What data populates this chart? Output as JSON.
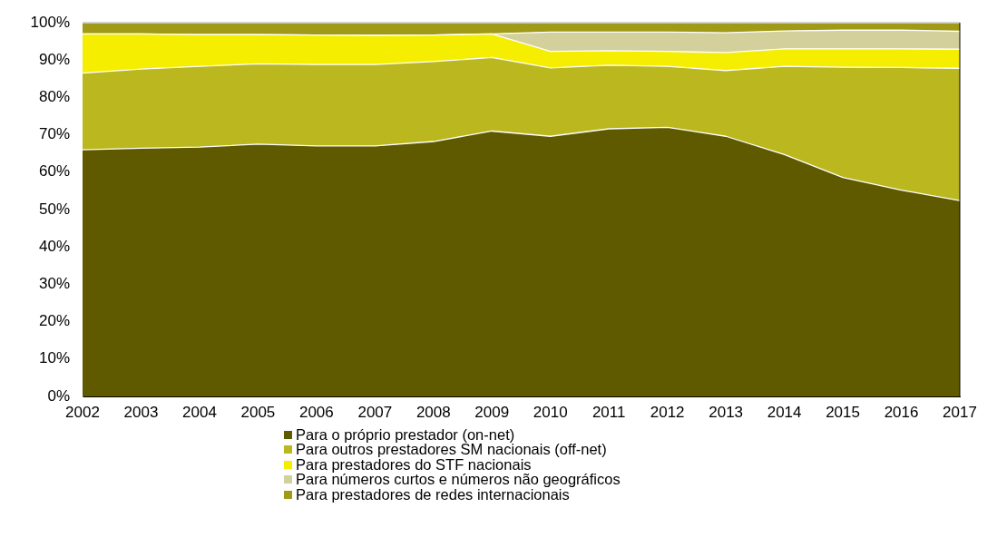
{
  "chart_data": {
    "type": "area",
    "stacked": true,
    "categories": [
      "2002",
      "2003",
      "2004",
      "2005",
      "2006",
      "2007",
      "2008",
      "2009",
      "2010",
      "2011",
      "2012",
      "2013",
      "2014",
      "2015",
      "2016",
      "2017"
    ],
    "series": [
      {
        "name": "Para o próprio prestador (on-net)",
        "color": "#5f5a00",
        "values": [
          66.0,
          66.4,
          66.7,
          67.5,
          67.0,
          67.0,
          68.2,
          71.0,
          69.6,
          71.6,
          72.0,
          69.6,
          64.7,
          58.6,
          55.2,
          52.4
        ]
      },
      {
        "name": "Para outros prestadores SM nacionais (off-net)",
        "color": "#bab71f",
        "values": [
          20.5,
          21.2,
          21.6,
          21.5,
          21.8,
          21.8,
          21.4,
          19.7,
          18.3,
          17.0,
          16.3,
          17.6,
          23.6,
          29.5,
          32.8,
          35.4
        ]
      },
      {
        "name": "Para prestadores do STF nacionais",
        "color": "#f5ee00",
        "values": [
          10.5,
          9.4,
          8.5,
          7.8,
          7.9,
          7.8,
          7.1,
          6.3,
          4.4,
          3.9,
          4.0,
          4.8,
          4.7,
          4.9,
          5.0,
          5.1
        ]
      },
      {
        "name": "Para números curtos e números não geográficos",
        "color": "#d3d09b",
        "values": [
          0,
          0,
          0,
          0,
          0,
          0,
          0,
          0,
          5.2,
          5.0,
          5.2,
          5.3,
          4.8,
          5.0,
          5.0,
          4.8
        ]
      },
      {
        "name": "Para prestadores de redes internacionais",
        "color": "#a09a16",
        "values": [
          3.0,
          3.0,
          3.2,
          3.2,
          3.3,
          3.4,
          3.3,
          3.0,
          2.5,
          2.5,
          2.5,
          2.7,
          2.2,
          2.0,
          2.0,
          2.3
        ]
      }
    ],
    "ylim": [
      0,
      100
    ],
    "yticks": [
      {
        "value": 0,
        "label": "0%"
      },
      {
        "value": 10,
        "label": "10%"
      },
      {
        "value": 20,
        "label": "20%"
      },
      {
        "value": 30,
        "label": "30%"
      },
      {
        "value": 40,
        "label": "40%"
      },
      {
        "value": 50,
        "label": "50%"
      },
      {
        "value": 60,
        "label": "60%"
      },
      {
        "value": 70,
        "label": "70%"
      },
      {
        "value": 80,
        "label": "80%"
      },
      {
        "value": 90,
        "label": "90%"
      },
      {
        "value": 100,
        "label": "100%"
      }
    ],
    "grid": false,
    "legend": "bottom"
  }
}
